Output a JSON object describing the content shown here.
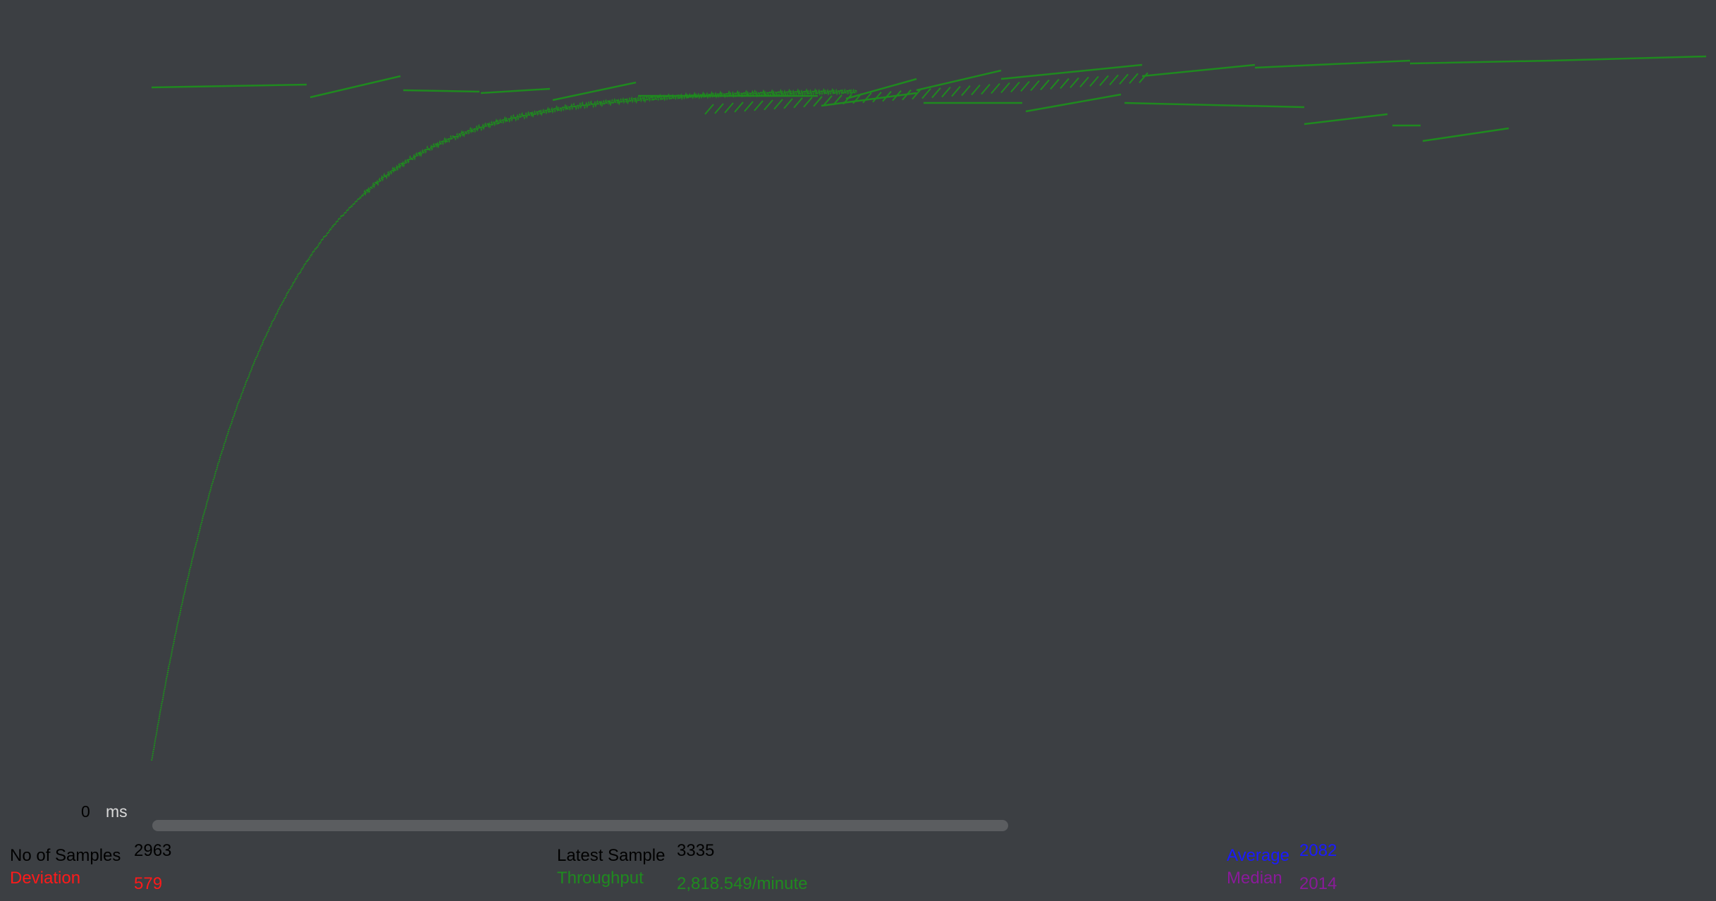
{
  "graph": {
    "axis_zero_label": "0",
    "axis_unit": "ms",
    "throughput_color": "#1f8a1f"
  },
  "chart_data": {
    "type": "scatter",
    "series": [
      {
        "color": "#1f8a1f",
        "points_desc": [],
        "x": [
          0,
          10,
          20,
          30,
          40,
          60,
          80,
          100,
          120,
          140,
          160,
          180,
          200,
          230,
          260,
          290,
          320,
          350,
          380,
          420,
          460,
          500,
          540,
          580,
          620,
          660,
          700,
          740,
          780,
          820,
          860,
          900,
          940,
          980,
          1020,
          1060,
          1100,
          1150,
          1200,
          1250,
          1300,
          1350,
          1400,
          1450,
          1500,
          1550,
          1600,
          1650,
          1700,
          1750,
          1800,
          1850,
          1900,
          1950,
          2000
        ],
        "y_level": [
          0.0,
          0.08,
          0.18,
          0.27,
          0.34,
          0.46,
          0.55,
          0.62,
          0.68,
          0.72,
          0.75,
          0.78,
          0.8,
          0.82,
          0.84,
          0.85,
          0.86,
          0.87,
          0.88,
          0.885,
          0.89,
          0.895,
          0.9,
          0.905,
          0.91,
          0.915,
          0.92,
          0.925,
          0.93,
          0.933,
          0.936,
          0.939,
          0.942,
          0.945,
          0.948,
          0.951,
          0.954,
          0.957,
          0.96,
          0.962,
          0.964,
          0.966,
          0.968,
          0.97,
          0.972,
          0.974,
          0.976,
          0.978,
          0.98,
          0.982,
          0.984,
          0.986,
          0.988,
          0.99,
          0.992
        ]
      }
    ]
  },
  "stats": {
    "samples_label": "No of Samples",
    "samples_value": "2963",
    "deviation_label": "Deviation",
    "deviation_value": "579",
    "latest_label": "Latest Sample",
    "latest_value": "3335",
    "throughput_label": "Throughput",
    "throughput_value": "2,818.549/minute",
    "average_label": "Average",
    "average_value": "2082",
    "median_label": "Median",
    "median_value": "2014"
  },
  "colors": {
    "background": "#3c3f43",
    "deviation": "#ff1a1a",
    "throughput": "#1f8a1f",
    "average": "#1a1aff",
    "median": "#8a1a9a"
  }
}
